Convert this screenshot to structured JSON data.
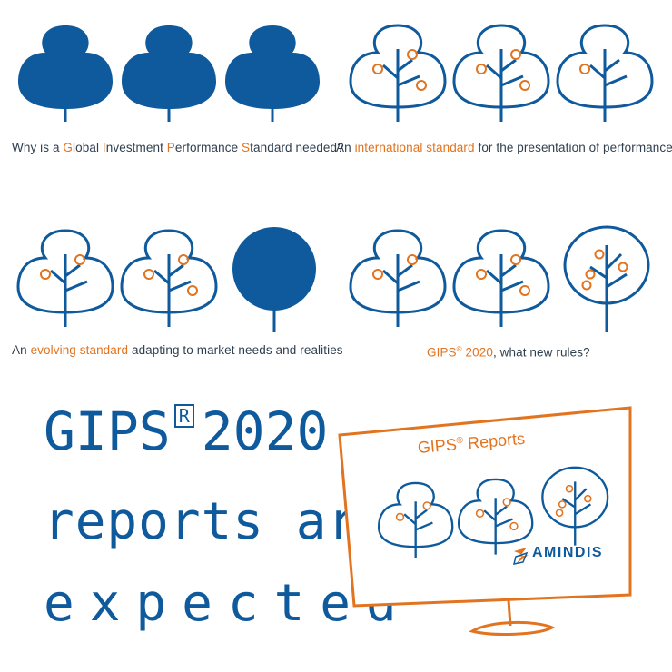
{
  "panels": [
    {
      "caption_parts": [
        {
          "t": "Why is a ",
          "hl": false
        },
        {
          "t": "G",
          "hl": true
        },
        {
          "t": "lobal ",
          "hl": false
        },
        {
          "t": "I",
          "hl": true
        },
        {
          "t": "nvestment ",
          "hl": false
        },
        {
          "t": "P",
          "hl": true
        },
        {
          "t": "erformance ",
          "hl": false
        },
        {
          "t": "S",
          "hl": true
        },
        {
          "t": "tandard needed?",
          "hl": false
        }
      ]
    },
    {
      "caption_parts": [
        {
          "t": "An ",
          "hl": false
        },
        {
          "t": "international standard",
          "hl": true
        },
        {
          "t": " for the presentation of performance",
          "hl": false
        }
      ]
    },
    {
      "caption_parts": [
        {
          "t": "An ",
          "hl": false
        },
        {
          "t": "evolving standard",
          "hl": true
        },
        {
          "t": " adapting to market needs and realities",
          "hl": false
        }
      ]
    },
    {
      "caption_parts": [
        {
          "t": "GIPS",
          "hl": true
        },
        {
          "t": "®",
          "hl": true,
          "sup": true
        },
        {
          "t": " 2020",
          "hl": true
        },
        {
          "t": ", what new rules?",
          "hl": false
        }
      ]
    }
  ],
  "headline": {
    "line1": "GIPS",
    "reg": "R",
    "line1b": "2020",
    "line2": "reports are",
    "line3": "expected"
  },
  "monitor": {
    "title": "GIPS",
    "reg": "®",
    "title_rest": " Reports",
    "brand": "AMINDIS"
  },
  "colors": {
    "blue": "#0e5a9c",
    "orange": "#e2731f"
  }
}
